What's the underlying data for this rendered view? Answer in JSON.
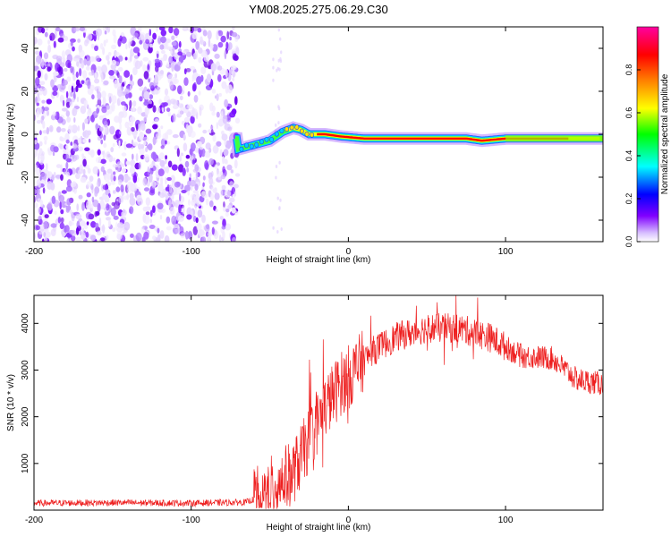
{
  "title": "YM08.2025.275.06.29.C30",
  "chart_data": [
    {
      "type": "heatmap",
      "name": "spectrogram",
      "xlabel": "Height of straight line (km)",
      "ylabel": "Frequency (Hz)",
      "xlim": [
        -200,
        162
      ],
      "ylim": [
        -50,
        50
      ],
      "xticks": [
        -200,
        -100,
        0,
        100
      ],
      "yticks": [
        -40,
        -20,
        0,
        20,
        40
      ],
      "colorbar": {
        "label": "Normalized spectral amplitude",
        "range": [
          0,
          1
        ],
        "ticks": [
          0.0,
          0.2,
          0.4,
          0.6,
          0.8
        ],
        "colors": [
          "#ffffff",
          "#8000ff",
          "#0000ff",
          "#00ffff",
          "#00ff00",
          "#ffff00",
          "#ff8000",
          "#ff0000",
          "#ff00a0"
        ]
      },
      "noise_region_km": [
        -200,
        -70
      ],
      "signal_track": [
        {
          "x": -70,
          "y": -7
        },
        {
          "x": -60,
          "y": -5
        },
        {
          "x": -50,
          "y": -3
        },
        {
          "x": -42,
          "y": 1
        },
        {
          "x": -35,
          "y": 3
        },
        {
          "x": -30,
          "y": 2
        },
        {
          "x": -25,
          "y": 0
        },
        {
          "x": -15,
          "y": 0
        },
        {
          "x": -5,
          "y": -1
        },
        {
          "x": 10,
          "y": -2
        },
        {
          "x": 40,
          "y": -2
        },
        {
          "x": 75,
          "y": -2
        },
        {
          "x": 85,
          "y": -3
        },
        {
          "x": 100,
          "y": -2
        },
        {
          "x": 130,
          "y": -2
        },
        {
          "x": 162,
          "y": -2
        }
      ]
    },
    {
      "type": "line",
      "name": "snr",
      "xlabel": "Height of straight line (km)",
      "ylabel": "SNR (10 * v/v)",
      "xlim": [
        -200,
        162
      ],
      "ylim": [
        0,
        4600
      ],
      "xticks": [
        -200,
        -100,
        0,
        100
      ],
      "yticks": [
        1000,
        2000,
        3000,
        4000
      ],
      "series_color": "#ee2020",
      "envelope": [
        {
          "x": -200,
          "y": 150
        },
        {
          "x": -150,
          "y": 160
        },
        {
          "x": -100,
          "y": 150
        },
        {
          "x": -65,
          "y": 170
        },
        {
          "x": -55,
          "y": 300
        },
        {
          "x": -45,
          "y": 600
        },
        {
          "x": -35,
          "y": 800
        },
        {
          "x": -25,
          "y": 1500
        },
        {
          "x": -15,
          "y": 2200
        },
        {
          "x": -5,
          "y": 2700
        },
        {
          "x": 5,
          "y": 3000
        },
        {
          "x": 15,
          "y": 3400
        },
        {
          "x": 30,
          "y": 3700
        },
        {
          "x": 50,
          "y": 3900
        },
        {
          "x": 70,
          "y": 3900
        },
        {
          "x": 90,
          "y": 3700
        },
        {
          "x": 110,
          "y": 3300
        },
        {
          "x": 130,
          "y": 3250
        },
        {
          "x": 145,
          "y": 2800
        },
        {
          "x": 162,
          "y": 2700
        }
      ]
    }
  ]
}
